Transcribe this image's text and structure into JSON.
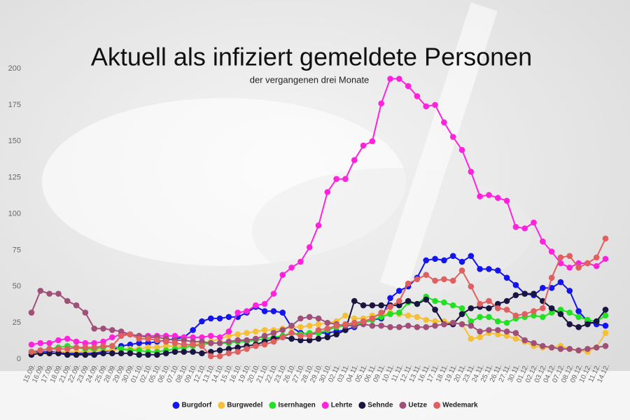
{
  "chart_data": {
    "type": "line",
    "title": "Aktuell als infiziert gemeldete Personen",
    "subtitle": "der vergangenen drei Monate",
    "categories": [
      "15.09.",
      "16.09.",
      "17.09.",
      "18.09.",
      "21.09.",
      "22.09.",
      "23.09.",
      "24.09.",
      "25.09.",
      "28.09.",
      "29.09.",
      "30.09.",
      "01.10.",
      "02.10.",
      "05.10.",
      "06.10.",
      "07.10.",
      "08.10.",
      "09.10.",
      "12.10.",
      "13.10.",
      "14.10.",
      "15.10.",
      "16.10.",
      "19.10.",
      "20.10.",
      "21.10.",
      "22.10.",
      "23.10.",
      "26.10.",
      "27.10.",
      "28.10.",
      "29.10.",
      "30.10.",
      "02.11.",
      "03.11.",
      "04.11.",
      "05.11.",
      "06.11.",
      "09.11.",
      "10.11.",
      "11.11.",
      "12.11.",
      "13.11.",
      "16.11.",
      "17.11.",
      "18.11.",
      "19.11.",
      "20.11.",
      "23.11.",
      "24.11.",
      "25.11.",
      "26.11.",
      "27.11.",
      "30.11.",
      "01.12.",
      "02.12.",
      "03.12.",
      "04.12.",
      "07.12.",
      "08.12.",
      "09.12.",
      "10.12.",
      "11.12.",
      "14.12."
    ],
    "series": [
      {
        "name": "Burgdorf",
        "color": "#1414ee",
        "values": [
          5,
          5,
          5,
          5,
          4,
          4,
          4,
          4,
          5,
          6,
          9,
          10,
          11,
          11,
          12,
          13,
          14,
          15,
          20,
          26,
          28,
          28,
          29,
          29,
          32,
          36,
          33,
          33,
          32,
          22,
          18,
          17,
          18,
          18,
          19,
          20,
          22,
          25,
          27,
          28,
          42,
          47,
          50,
          56,
          68,
          69,
          68,
          71,
          67,
          71,
          62,
          62,
          61,
          56,
          51,
          45,
          44,
          49,
          49,
          53,
          47,
          33,
          26,
          24,
          23
        ]
      },
      {
        "name": "Burgwedel",
        "color": "#f5c036",
        "values": [
          4,
          4,
          4,
          5,
          5,
          5,
          5,
          6,
          6,
          6,
          7,
          7,
          7,
          8,
          8,
          9,
          9,
          9,
          10,
          11,
          12,
          14,
          16,
          17,
          18,
          19,
          20,
          20,
          21,
          22,
          22,
          23,
          24,
          25,
          26,
          30,
          28,
          28,
          30,
          30,
          32,
          31,
          30,
          29,
          27,
          26,
          26,
          25,
          24,
          14,
          15,
          18,
          17,
          16,
          14,
          12,
          9,
          8,
          8,
          9,
          7,
          6,
          5,
          8,
          18
        ]
      },
      {
        "name": "Isernhagen",
        "color": "#22e022",
        "values": [
          5,
          6,
          7,
          8,
          9,
          8,
          7,
          7,
          8,
          9,
          7,
          6,
          6,
          5,
          5,
          6,
          7,
          8,
          9,
          10,
          11,
          11,
          11,
          12,
          12,
          13,
          14,
          15,
          16,
          18,
          17,
          18,
          18,
          20,
          22,
          23,
          24,
          25,
          27,
          29,
          31,
          32,
          39,
          38,
          43,
          40,
          39,
          37,
          35,
          26,
          29,
          29,
          26,
          25,
          28,
          29,
          30,
          29,
          32,
          34,
          32,
          29,
          27,
          26,
          30
        ]
      },
      {
        "name": "Lehrte",
        "color": "#ff22dd",
        "values": [
          10,
          11,
          11,
          13,
          14,
          12,
          11,
          11,
          12,
          15,
          17,
          17,
          16,
          16,
          16,
          16,
          16,
          15,
          15,
          15,
          16,
          15,
          19,
          32,
          33,
          37,
          38,
          45,
          58,
          63,
          67,
          77,
          92,
          115,
          124,
          124,
          137,
          147,
          150,
          176,
          193,
          193,
          188,
          181,
          174,
          175,
          163,
          153,
          144,
          129,
          112,
          113,
          111,
          109,
          91,
          90,
          94,
          81,
          74,
          66,
          63,
          66,
          66,
          64,
          69
        ]
      },
      {
        "name": "Sehnde",
        "color": "#1a1440",
        "values": [
          3,
          4,
          4,
          4,
          3,
          3,
          3,
          3,
          4,
          4,
          4,
          4,
          3,
          3,
          3,
          4,
          5,
          5,
          5,
          4,
          5,
          6,
          7,
          8,
          9,
          10,
          12,
          14,
          15,
          14,
          13,
          13,
          14,
          15,
          17,
          20,
          40,
          37,
          37,
          37,
          37,
          37,
          40,
          38,
          41,
          34,
          24,
          24,
          31,
          35,
          36,
          35,
          38,
          40,
          44,
          45,
          45,
          40,
          35,
          31,
          24,
          22,
          24,
          26,
          34
        ]
      },
      {
        "name": "Uetze",
        "color": "#a05078",
        "values": [
          32,
          47,
          45,
          45,
          40,
          37,
          32,
          21,
          21,
          20,
          19,
          17,
          16,
          15,
          15,
          14,
          13,
          13,
          12,
          12,
          11,
          11,
          12,
          13,
          13,
          14,
          16,
          18,
          20,
          23,
          28,
          29,
          28,
          25,
          24,
          23,
          23,
          24,
          23,
          23,
          22,
          22,
          23,
          22,
          22,
          23,
          24,
          25,
          24,
          23,
          19,
          20,
          20,
          19,
          18,
          13,
          11,
          9,
          8,
          7,
          7,
          6,
          7,
          8,
          9
        ]
      },
      {
        "name": "Wedemark",
        "color": "#e06060",
        "values": [
          5,
          6,
          7,
          7,
          7,
          8,
          8,
          8,
          9,
          9,
          16,
          17,
          14,
          14,
          13,
          12,
          11,
          10,
          10,
          9,
          2,
          2,
          4,
          5,
          7,
          9,
          10,
          12,
          15,
          18,
          16,
          16,
          20,
          21,
          23,
          24,
          25,
          26,
          28,
          32,
          36,
          40,
          52,
          55,
          58,
          54,
          55,
          54,
          61,
          50,
          38,
          40,
          35,
          34,
          30,
          31,
          33,
          35,
          56,
          70,
          71,
          63,
          66,
          70,
          83
        ]
      }
    ],
    "ylim": [
      0,
      200
    ],
    "yticks": [
      0,
      25,
      50,
      75,
      100,
      125,
      150,
      175,
      200
    ],
    "grid": false,
    "legend": "bottom"
  }
}
